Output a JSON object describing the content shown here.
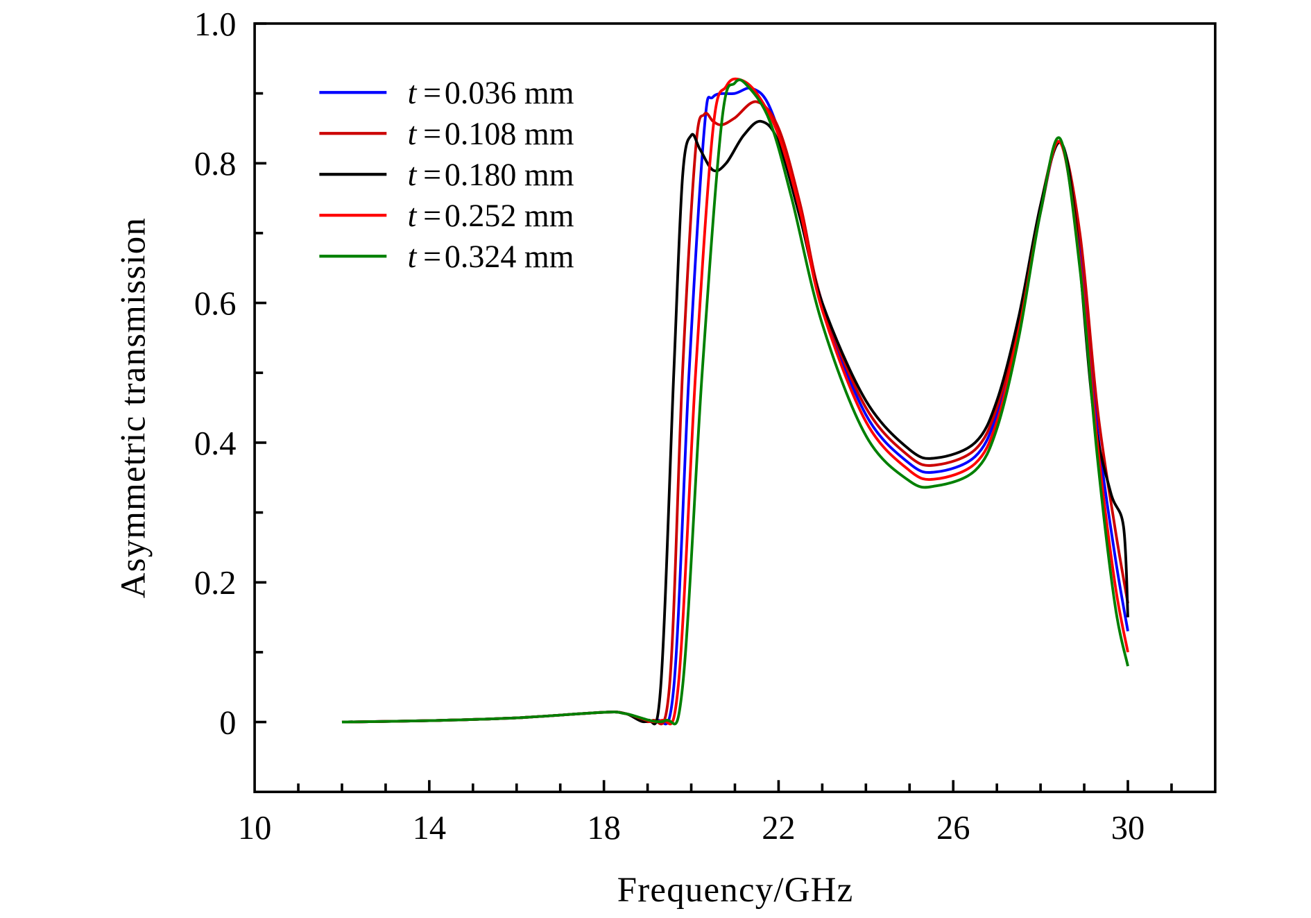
{
  "chart_data": {
    "type": "line",
    "title": "",
    "xlabel": "Frequency/GHz",
    "ylabel": "Asymmetric transmission",
    "xlim": [
      10,
      32
    ],
    "ylim": [
      -0.1,
      1.0
    ],
    "xticks": [
      10,
      14,
      18,
      22,
      26,
      30
    ],
    "xtick_labels": [
      "10",
      "14",
      "18",
      "22",
      "26",
      "30"
    ],
    "yticks": [
      0,
      0.2,
      0.4,
      0.6,
      0.8,
      1.0
    ],
    "ytick_labels": [
      "0",
      "0.2",
      "0.4",
      "0.6",
      "0.8",
      "1.0"
    ],
    "grid": false,
    "legend_placement": "top-left",
    "series": [
      {
        "name": "t = 0.036 mm",
        "t": "t",
        "eq": "=",
        "value_label": "0.036 mm",
        "color": "#0000ff",
        "x": [
          12,
          14,
          16,
          18,
          18.5,
          19.2,
          19.6,
          19.95,
          20.3,
          20.5,
          21,
          21.4,
          21.8,
          22.3,
          23,
          24,
          25,
          25.6,
          26.5,
          27,
          27.5,
          28,
          28.45,
          28.9,
          29.3,
          29.7,
          30
        ],
        "y": [
          0,
          0.002,
          0.006,
          0.014,
          0.012,
          0.002,
          0.05,
          0.5,
          0.85,
          0.895,
          0.9,
          0.907,
          0.88,
          0.78,
          0.6,
          0.44,
          0.37,
          0.358,
          0.38,
          0.44,
          0.56,
          0.73,
          0.83,
          0.68,
          0.42,
          0.24,
          0.13
        ]
      },
      {
        "name": "t = 0.108 mm",
        "t": "t",
        "eq": "=",
        "value_label": "0.108 mm",
        "color": "#cc0000",
        "x": [
          12,
          14,
          16,
          18,
          18.5,
          19.1,
          19.5,
          19.8,
          20.1,
          20.3,
          20.5,
          20.7,
          21,
          21.5,
          22,
          22.5,
          23,
          24,
          25,
          25.6,
          26.5,
          27,
          27.5,
          28,
          28.45,
          28.9,
          29.3,
          29.7,
          30
        ],
        "y": [
          0,
          0.002,
          0.006,
          0.014,
          0.012,
          0.002,
          0.05,
          0.5,
          0.82,
          0.87,
          0.86,
          0.855,
          0.865,
          0.888,
          0.85,
          0.74,
          0.6,
          0.45,
          0.38,
          0.368,
          0.39,
          0.45,
          0.57,
          0.74,
          0.83,
          0.7,
          0.45,
          0.28,
          0.17
        ]
      },
      {
        "name": "t = 0.180 mm",
        "t": "t",
        "eq": "=",
        "value_label": "0.180 mm",
        "color": "#000000",
        "x": [
          12,
          14,
          16,
          18,
          18.5,
          19,
          19.3,
          19.6,
          19.8,
          20,
          20.2,
          20.5,
          20.8,
          21.2,
          21.6,
          22,
          22.5,
          23,
          24,
          25,
          25.6,
          26.5,
          27,
          27.5,
          28,
          28.45,
          28.8,
          29.2,
          29.6,
          29.9,
          30
        ],
        "y": [
          0,
          0.002,
          0.006,
          0.014,
          0.012,
          0.002,
          0.05,
          0.5,
          0.78,
          0.84,
          0.82,
          0.79,
          0.8,
          0.84,
          0.86,
          0.83,
          0.72,
          0.6,
          0.46,
          0.39,
          0.378,
          0.4,
          0.46,
          0.58,
          0.74,
          0.83,
          0.72,
          0.45,
          0.33,
          0.28,
          0.15
        ]
      },
      {
        "name": "t = 0.252 mm",
        "t": "t",
        "eq": "=",
        "value_label": "0.252 mm",
        "color": "#ff0000",
        "x": [
          12,
          14,
          16,
          18,
          18.5,
          19.3,
          19.7,
          20.1,
          20.5,
          20.8,
          21.1,
          21.5,
          22,
          22.5,
          23,
          24,
          25,
          25.6,
          26.5,
          27,
          27.5,
          28,
          28.45,
          28.9,
          29.3,
          29.7,
          30
        ],
        "y": [
          0,
          0.002,
          0.006,
          0.014,
          0.012,
          0.002,
          0.05,
          0.5,
          0.85,
          0.91,
          0.92,
          0.9,
          0.84,
          0.73,
          0.59,
          0.43,
          0.36,
          0.348,
          0.37,
          0.43,
          0.56,
          0.73,
          0.83,
          0.66,
          0.4,
          0.2,
          0.1
        ]
      },
      {
        "name": "t = 0.324 mm",
        "t": "t",
        "eq": "=",
        "value_label": "0.324 mm",
        "color": "#008000",
        "x": [
          12,
          14,
          16,
          18,
          18.5,
          19.4,
          19.8,
          20.25,
          20.7,
          21,
          21.3,
          21.8,
          22.3,
          23,
          24,
          25,
          25.6,
          26.5,
          27,
          27.5,
          28,
          28.45,
          28.9,
          29.3,
          29.7,
          30
        ],
        "y": [
          0,
          0.002,
          0.006,
          0.014,
          0.012,
          0.002,
          0.05,
          0.5,
          0.86,
          0.915,
          0.91,
          0.86,
          0.75,
          0.57,
          0.41,
          0.345,
          0.338,
          0.36,
          0.42,
          0.55,
          0.73,
          0.835,
          0.65,
          0.38,
          0.17,
          0.08
        ]
      }
    ]
  }
}
